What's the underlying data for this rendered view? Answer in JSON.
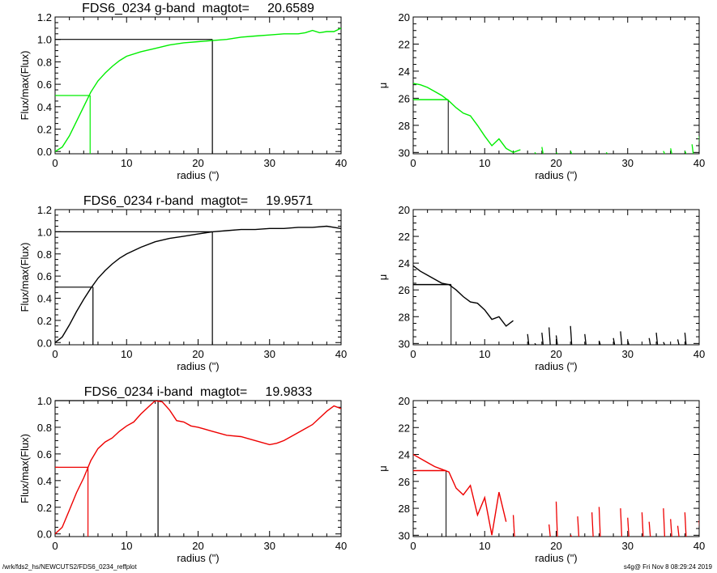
{
  "colors": {
    "g": "#00ee00",
    "r": "#000000",
    "i": "#ee0000",
    "axis": "#000000"
  },
  "footer": {
    "left": "/wrk/fds2_hs/NEWCUTS2/FDS6_0234_reffplot",
    "right": "s4g@  Fri Nov  8 08:29:24 2019"
  },
  "chart_data": [
    {
      "id": "g-growth",
      "type": "line",
      "title": "FDS6_0234 g-band  magtot=     20.6589",
      "xlabel": "radius (\")",
      "ylabel": "Flux/max(Flux)",
      "xlim": [
        0,
        40
      ],
      "ylim": [
        -0.02,
        1.2
      ],
      "xticks": [
        "0",
        "10",
        "20",
        "30",
        "40"
      ],
      "yticks": [
        "0.0",
        "0.2",
        "0.4",
        "0.6",
        "0.8",
        "1.0",
        "1.2"
      ],
      "series": [
        {
          "color": "g",
          "x": [
            0,
            1,
            2,
            3,
            4,
            5,
            6,
            7,
            8,
            9,
            10,
            12,
            14,
            16,
            18,
            20,
            22,
            24,
            26,
            28,
            30,
            32,
            34,
            35,
            36,
            37,
            38,
            39,
            40
          ],
          "y": [
            0,
            0.04,
            0.14,
            0.27,
            0.4,
            0.53,
            0.63,
            0.7,
            0.76,
            0.81,
            0.85,
            0.89,
            0.92,
            0.95,
            0.97,
            0.98,
            0.99,
            1.0,
            1.02,
            1.03,
            1.04,
            1.05,
            1.05,
            1.06,
            1.08,
            1.06,
            1.07,
            1.07,
            1.1
          ]
        }
      ],
      "guides": [
        {
          "level": 0.5,
          "radius": 4.9,
          "color": "g"
        },
        {
          "level": 1.0,
          "radius": 22.0,
          "color": "axis"
        }
      ]
    },
    {
      "id": "g-mu",
      "type": "line",
      "title": "",
      "xlabel": "radius (\")",
      "ylabel": "μ",
      "xlim": [
        0,
        40
      ],
      "ylim": [
        30.1,
        20
      ],
      "scale": "inverted",
      "xticks": [
        "0",
        "10",
        "20",
        "30",
        "40"
      ],
      "yticks": [
        "20",
        "22",
        "24",
        "26",
        "28",
        "30"
      ],
      "series": [
        {
          "color": "g",
          "x": [
            0,
            1,
            2,
            3,
            4,
            5,
            6,
            7,
            8,
            9,
            10,
            11,
            12,
            13,
            14,
            15
          ],
          "y": [
            24.9,
            25.0,
            25.2,
            25.5,
            25.8,
            26.2,
            26.7,
            27.1,
            27.3,
            28.0,
            28.8,
            29.5,
            29.0,
            29.7,
            30.0,
            29.8
          ]
        }
      ],
      "sparse_points": [
        [
          17,
          30.0
        ],
        [
          18,
          29.6
        ],
        [
          20,
          30.0
        ],
        [
          22,
          29.9
        ],
        [
          27,
          30.0
        ],
        [
          35,
          29.9
        ],
        [
          36,
          29.7
        ],
        [
          38,
          29.9
        ],
        [
          39,
          29.4
        ],
        [
          40,
          28.8
        ]
      ],
      "guides": [
        {
          "level": 26.1,
          "radius": 4.9,
          "color": "g",
          "mark": "axis"
        }
      ]
    },
    {
      "id": "r-growth",
      "type": "line",
      "title": "FDS6_0234 r-band  magtot=     19.9571",
      "xlabel": "radius (\")",
      "ylabel": "Flux/max(Flux)",
      "xlim": [
        0,
        40
      ],
      "ylim": [
        -0.02,
        1.2
      ],
      "xticks": [
        "0",
        "10",
        "20",
        "30",
        "40"
      ],
      "yticks": [
        "0.0",
        "0.2",
        "0.4",
        "0.6",
        "0.8",
        "1.0",
        "1.2"
      ],
      "series": [
        {
          "color": "r",
          "x": [
            0,
            1,
            2,
            3,
            4,
            5,
            6,
            7,
            8,
            9,
            10,
            12,
            14,
            16,
            18,
            20,
            22,
            24,
            26,
            28,
            30,
            32,
            34,
            36,
            38,
            40
          ],
          "y": [
            0,
            0.05,
            0.16,
            0.28,
            0.39,
            0.49,
            0.58,
            0.65,
            0.71,
            0.76,
            0.8,
            0.86,
            0.91,
            0.94,
            0.96,
            0.98,
            1.0,
            1.01,
            1.02,
            1.02,
            1.03,
            1.03,
            1.04,
            1.04,
            1.05,
            1.03
          ]
        }
      ],
      "guides": [
        {
          "level": 0.5,
          "radius": 5.3,
          "color": "r"
        },
        {
          "level": 1.0,
          "radius": 22.0,
          "color": "axis"
        }
      ]
    },
    {
      "id": "r-mu",
      "type": "line",
      "title": "",
      "xlabel": "radius (\")",
      "ylabel": "μ",
      "xlim": [
        0,
        40
      ],
      "ylim": [
        30.1,
        20
      ],
      "scale": "inverted",
      "xticks": [
        "0",
        "10",
        "20",
        "30",
        "40"
      ],
      "yticks": [
        "20",
        "22",
        "24",
        "26",
        "28",
        "30"
      ],
      "series": [
        {
          "color": "r",
          "x": [
            0,
            1,
            2,
            3,
            4,
            5,
            6,
            7,
            8,
            9,
            10,
            11,
            12,
            13,
            14
          ],
          "y": [
            24.2,
            24.6,
            24.9,
            25.2,
            25.5,
            25.6,
            26.0,
            26.5,
            26.9,
            27.0,
            27.5,
            28.2,
            28.0,
            28.7,
            28.3
          ]
        }
      ],
      "sparse_points": [
        [
          16,
          29.3
        ],
        [
          17,
          30.0
        ],
        [
          18,
          29.2
        ],
        [
          19,
          28.8
        ],
        [
          20,
          29.4
        ],
        [
          22,
          28.7
        ],
        [
          24,
          29.3
        ],
        [
          26,
          29.8
        ],
        [
          28,
          29.6
        ],
        [
          29,
          29.1
        ],
        [
          30,
          29.8
        ],
        [
          33,
          29.6
        ],
        [
          34,
          29.2
        ],
        [
          35,
          29.9
        ],
        [
          37,
          29.7
        ],
        [
          38,
          29.2
        ],
        [
          40,
          29.6
        ]
      ],
      "guides": [
        {
          "level": 25.6,
          "radius": 5.3,
          "color": "r",
          "mark": "axis"
        }
      ]
    },
    {
      "id": "i-growth",
      "type": "line",
      "title": "FDS6_0234 i-band  magtot=     19.9833",
      "xlabel": "radius (\")",
      "ylabel": "Flux/max(Flux)",
      "xlim": [
        0,
        40
      ],
      "ylim": [
        -0.02,
        1.0
      ],
      "xticks": [
        "0",
        "10",
        "20",
        "30",
        "40"
      ],
      "yticks": [
        "0.0",
        "0.2",
        "0.4",
        "0.6",
        "0.8",
        "1.0"
      ],
      "series": [
        {
          "color": "i",
          "x": [
            0,
            1,
            2,
            3,
            4,
            5,
            6,
            7,
            8,
            9,
            10,
            11,
            12,
            13,
            14,
            15,
            16,
            17,
            18,
            19,
            20,
            22,
            24,
            26,
            28,
            30,
            31,
            32,
            34,
            36,
            38,
            39,
            40
          ],
          "y": [
            0,
            0.05,
            0.18,
            0.31,
            0.42,
            0.55,
            0.64,
            0.69,
            0.72,
            0.77,
            0.81,
            0.84,
            0.9,
            0.95,
            1.0,
            0.99,
            0.93,
            0.85,
            0.84,
            0.81,
            0.8,
            0.77,
            0.74,
            0.73,
            0.7,
            0.67,
            0.68,
            0.7,
            0.76,
            0.82,
            0.92,
            0.96,
            0.94
          ]
        }
      ],
      "guides": [
        {
          "level": 0.5,
          "radius": 4.6,
          "color": "i"
        },
        {
          "level": 1.0,
          "radius": 14.4,
          "color": "axis"
        }
      ]
    },
    {
      "id": "i-mu",
      "type": "line",
      "title": "",
      "xlabel": "radius (\")",
      "ylabel": "μ",
      "xlim": [
        0,
        40
      ],
      "ylim": [
        30.1,
        20
      ],
      "scale": "inverted",
      "xticks": [
        "0",
        "10",
        "20",
        "30",
        "40"
      ],
      "yticks": [
        "20",
        "22",
        "24",
        "26",
        "28",
        "30"
      ],
      "series": [
        {
          "color": "i",
          "x": [
            0,
            1,
            2,
            3,
            4,
            5,
            6,
            7,
            8,
            9,
            10,
            11,
            12,
            13
          ],
          "y": [
            24.0,
            24.3,
            24.6,
            24.9,
            25.1,
            25.3,
            26.5,
            27.0,
            26.3,
            28.5,
            27.2,
            30.0,
            26.8,
            29.0
          ]
        }
      ],
      "sparse_points": [
        [
          14,
          28.5
        ],
        [
          19,
          29.2
        ],
        [
          20,
          27.5
        ],
        [
          22,
          30.0
        ],
        [
          23,
          28.6
        ],
        [
          25,
          28.3
        ],
        [
          26,
          27.9
        ],
        [
          29,
          28.0
        ],
        [
          30,
          28.7
        ],
        [
          32,
          28.3
        ],
        [
          33,
          29.0
        ],
        [
          35,
          28.0
        ],
        [
          36,
          28.8
        ],
        [
          37,
          29.3
        ],
        [
          38,
          28.3
        ],
        [
          40,
          28.9
        ]
      ],
      "guides": [
        {
          "level": 25.2,
          "radius": 4.6,
          "color": "i",
          "mark": "axis"
        }
      ]
    }
  ]
}
